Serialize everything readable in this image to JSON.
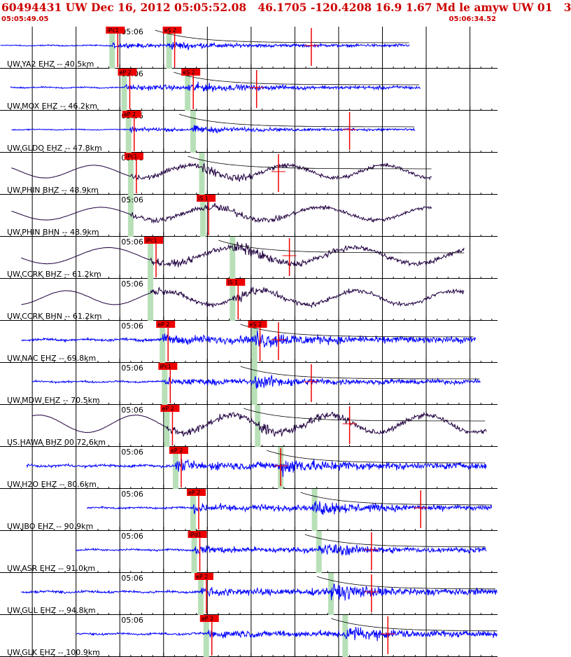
{
  "header": {
    "title": "60494431 UW Dec 16, 2012 05:05:52.08   46.1705 -120.4208 16.9 1.67 Md le amyw UW 01   3",
    "start_time": "05:05:49.05",
    "end_time": "05:06:34.52"
  },
  "colors": {
    "title": "#cc0000",
    "trace_sp": "#0000ff",
    "trace_bb": "#200040",
    "pick_box": "#ee0000",
    "pick_window": "#b8e0b8",
    "grid": "#000000"
  },
  "chart_data": {
    "type": "line",
    "title": "60494431 UW Dec 16, 2012 05:05:52.08",
    "x_range_s": [
      49.05,
      94.52
    ],
    "minute_label": "05:06",
    "time_ticks_s": [
      52,
      56,
      60,
      64,
      68,
      72,
      76,
      80,
      84,
      88,
      92
    ],
    "traces": [
      {
        "label": "UW.YA2 EHZ -- 40.5km",
        "color": "blue",
        "start_s": 49.1,
        "end_s": 86.5,
        "amp": 0.25,
        "p_s": 59.3,
        "s_s": 64.5,
        "end_pick_s": 77.5,
        "p_label": "iPc1",
        "s_label": "eS 2",
        "coda_end_s": 86.5
      },
      {
        "label": "UW.MOX EHZ -- 46.2km",
        "color": "blue",
        "start_s": 50.0,
        "end_s": 87.5,
        "amp": 0.3,
        "p_s": 60.4,
        "s_s": 66.2,
        "end_pick_s": 72.5,
        "p_label": "eP 2",
        "s_label": "eS 2",
        "coda_end_s": 87.5
      },
      {
        "label": "UW.GLDO EHZ -- 47.8km",
        "color": "blue",
        "start_s": 50.1,
        "end_s": 87.0,
        "amp": 0.22,
        "p_s": 60.8,
        "s_s": 66.7,
        "end_pick_s": 81.0,
        "p_label": "eP 2",
        "s_label": "",
        "coda_end_s": 87.0
      },
      {
        "label": "UW.PHIN BHZ -- 48.9km",
        "color": "purple",
        "start_s": 50.1,
        "end_s": 88.5,
        "amp": 0.55,
        "p_s": 61.0,
        "s_s": 67.5,
        "end_pick_s": 74.5,
        "p_label": "iPc1",
        "s_label": "",
        "coda_end_s": 88.5
      },
      {
        "label": "UW.PHIN BHN -- 48.9km",
        "color": "purple",
        "start_s": 50.1,
        "end_s": 88.5,
        "amp": 0.55,
        "p_s": 61.0,
        "s_s": 67.6,
        "end_pick_s": 0,
        "p_label": "",
        "s_label": "iS 1",
        "coda_end_s": 88.5
      },
      {
        "label": "UW.CCRK BHZ -- 61.2km",
        "color": "purple",
        "start_s": 51.0,
        "end_s": 91.5,
        "amp": 0.7,
        "p_s": 62.8,
        "s_s": 70.3,
        "end_pick_s": 75.5,
        "p_label": "iPc1",
        "s_label": "",
        "coda_end_s": 91.5
      },
      {
        "label": "UW.CCRK BHN -- 61.2km",
        "color": "purple",
        "start_s": 51.0,
        "end_s": 91.5,
        "amp": 0.6,
        "p_s": 62.8,
        "s_s": 70.3,
        "end_pick_s": 0,
        "p_label": "",
        "s_label": "iS 1",
        "coda_end_s": 91.5
      },
      {
        "label": "UW.NAC EHZ -- 69.8km",
        "color": "blue",
        "start_s": 51.0,
        "end_s": 92.5,
        "amp": 0.55,
        "p_s": 63.9,
        "s_s": 72.3,
        "end_pick_s": 74.5,
        "p_label": "eP 2",
        "s_label": "eS 2",
        "coda_end_s": 92.5
      },
      {
        "label": "UW.MDW EHZ -- 70.5km",
        "color": "blue",
        "start_s": 52.0,
        "end_s": 93.0,
        "amp": 0.4,
        "p_s": 64.1,
        "s_s": 72.3,
        "end_pick_s": 77.5,
        "p_label": "iPc1",
        "s_label": "",
        "coda_end_s": 93.0
      },
      {
        "label": "US.HAWA BHZ 00 72.6km",
        "color": "purple",
        "start_s": 52.0,
        "end_s": 93.5,
        "amp": 0.75,
        "p_s": 64.3,
        "s_s": 72.6,
        "end_pick_s": 81.0,
        "p_label": "eP 2",
        "s_label": "",
        "coda_end_s": 93.5
      },
      {
        "label": "UW.H2O EHZ -- 80.6km",
        "color": "blue",
        "start_s": 51.5,
        "end_s": 93.5,
        "amp": 0.55,
        "p_s": 65.1,
        "s_s": 74.7,
        "end_pick_s": 74.7,
        "p_label": "eP 2",
        "s_label": "",
        "coda_end_s": 93.5
      },
      {
        "label": "UW.JBO EHZ -- 90.9km",
        "color": "blue",
        "start_s": 57.0,
        "end_s": 94.0,
        "amp": 0.45,
        "p_s": 66.7,
        "s_s": 77.8,
        "end_pick_s": 87.5,
        "p_label": "eP 2",
        "s_label": "",
        "coda_end_s": 94.0
      },
      {
        "label": "UW.ASR EHZ -- 91.0km",
        "color": "blue",
        "start_s": 56.0,
        "end_s": 93.5,
        "amp": 0.4,
        "p_s": 66.8,
        "s_s": 78.2,
        "end_pick_s": 83.0,
        "p_label": "iPd1",
        "s_label": "",
        "coda_end_s": 93.5
      },
      {
        "label": "UW.GUL EHZ -- 94.8km",
        "color": "blue",
        "start_s": 51.0,
        "end_s": 94.5,
        "amp": 0.5,
        "p_s": 67.4,
        "s_s": 79.3,
        "end_pick_s": 83.0,
        "p_label": "eP 2",
        "s_label": "",
        "coda_end_s": 94.5
      },
      {
        "label": "UW.GLK EHZ -- 100.9km",
        "color": "blue",
        "start_s": 56.0,
        "end_s": 94.5,
        "amp": 0.45,
        "p_s": 67.9,
        "s_s": 80.6,
        "end_pick_s": 84.5,
        "p_label": "eP 2",
        "s_label": "",
        "coda_end_s": 94.5
      }
    ]
  }
}
